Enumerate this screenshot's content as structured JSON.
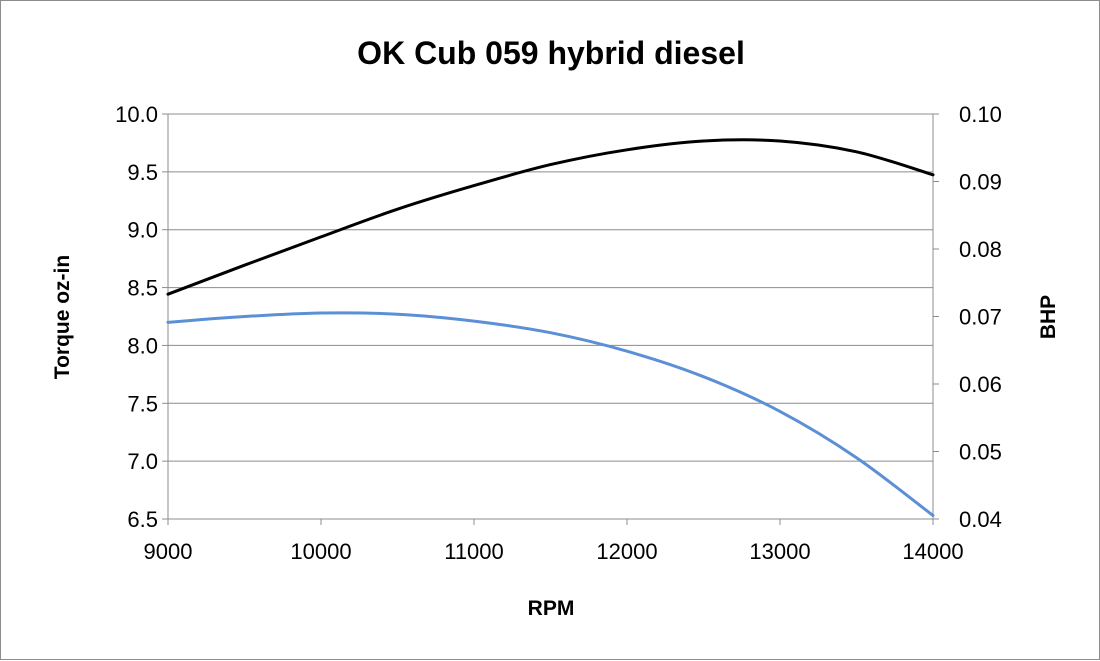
{
  "chart_data": {
    "type": "line",
    "title": "OK Cub 059 hybrid diesel",
    "xlabel": "RPM",
    "ylabel": "Torque oz-in",
    "y2label": "BHP",
    "xlim": [
      9000,
      14000
    ],
    "ylim": [
      6.5,
      10.0
    ],
    "y2lim": [
      0.04,
      0.1
    ],
    "x_ticks": [
      "9000",
      "10000",
      "11000",
      "12000",
      "13000",
      "14000"
    ],
    "y_ticks": [
      "6.5",
      "7.0",
      "7.5",
      "8.0",
      "8.5",
      "9.0",
      "9.5",
      "10.0"
    ],
    "y2_ticks": [
      "0.04",
      "0.05",
      "0.06",
      "0.07",
      "0.08",
      "0.09",
      "0.10"
    ],
    "grid": true,
    "series": [
      {
        "axis": "left",
        "color": "#5b8fd6",
        "x": [
          9000,
          9500,
          10000,
          10500,
          11000,
          11500,
          12000,
          12500,
          13000,
          13500,
          14000
        ],
        "y": [
          8.2,
          8.25,
          8.28,
          8.27,
          8.21,
          8.11,
          7.95,
          7.73,
          7.43,
          7.03,
          6.53
        ]
      },
      {
        "axis": "right",
        "color": "#000000",
        "x": [
          9000,
          9500,
          10000,
          10500,
          11000,
          11500,
          12000,
          12500,
          13000,
          13500,
          14000
        ],
        "y": [
          0.0733,
          0.0776,
          0.0818,
          0.0859,
          0.0894,
          0.0925,
          0.0947,
          0.096,
          0.096,
          0.0944,
          0.091
        ]
      }
    ]
  }
}
